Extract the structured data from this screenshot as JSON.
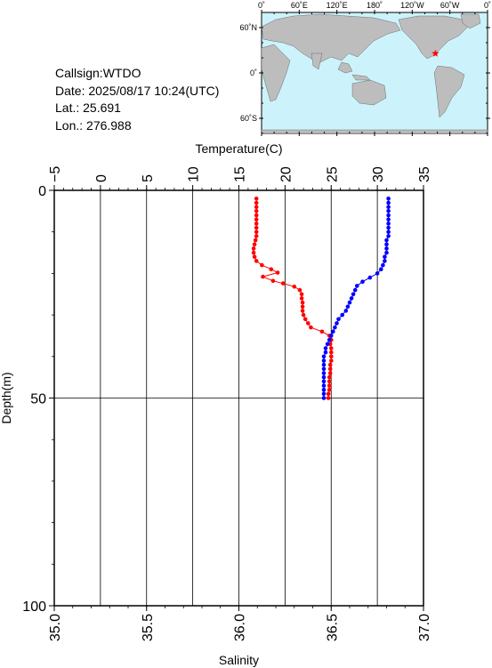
{
  "header": {
    "callsign": "Callsign:WTDO",
    "date": "Date:  2025/08/17 10:24(UTC)",
    "lat": "Lat.:   25.691",
    "lon": "Lon.:  276.988"
  },
  "map": {
    "lon_labels": [
      "0˚",
      "60˚E",
      "120˚E",
      "180˚",
      "120˚W",
      "60˚W",
      "0˚"
    ],
    "lat_labels": [
      "60˚N",
      "0˚",
      "60˚S"
    ],
    "station": {
      "lon": 276.988,
      "lat": 25.691
    },
    "colors": {
      "ocean": "#ccf3fb",
      "land": "#bdbdbd",
      "marker": "#ff0000"
    }
  },
  "chart_data": {
    "type": "line",
    "xlabel_top": "Temperature(C)",
    "xlabel_bottom": "Salinity",
    "ylabel": "Depth(m)",
    "temperature_ticks": [
      "−5",
      "0",
      "5",
      "10",
      "15",
      "20",
      "25",
      "30",
      "35"
    ],
    "temperature_range": [
      -5,
      35
    ],
    "salinity_ticks": [
      "35.0",
      "35.5",
      "36.0",
      "36.5",
      "37.0"
    ],
    "salinity_range": [
      35.0,
      37.0
    ],
    "depth_ticks": [
      "0",
      "50",
      "100"
    ],
    "depth_range": [
      0,
      100
    ],
    "grid": true,
    "series": [
      {
        "color": "#ff0000",
        "axis": "temperature",
        "points": [
          [
            16.9,
            2
          ],
          [
            16.9,
            3
          ],
          [
            16.9,
            4
          ],
          [
            16.9,
            5
          ],
          [
            16.9,
            6
          ],
          [
            16.9,
            7
          ],
          [
            16.9,
            8
          ],
          [
            16.9,
            9
          ],
          [
            16.9,
            10
          ],
          [
            16.9,
            11
          ],
          [
            16.8,
            12
          ],
          [
            16.7,
            13
          ],
          [
            16.6,
            14
          ],
          [
            16.6,
            15
          ],
          [
            16.7,
            16
          ],
          [
            16.9,
            17
          ],
          [
            17.5,
            18
          ],
          [
            18.5,
            19
          ],
          [
            19.2,
            19.8
          ],
          [
            17.6,
            20.8
          ],
          [
            18.7,
            21.8
          ],
          [
            19.8,
            22.4
          ],
          [
            21.0,
            23.2
          ],
          [
            21.6,
            24.0
          ],
          [
            21.8,
            25.0
          ],
          [
            21.8,
            26.0
          ],
          [
            21.9,
            27.0
          ],
          [
            21.9,
            28.0
          ],
          [
            21.9,
            29.0
          ],
          [
            22.0,
            30.0
          ],
          [
            22.2,
            31.0
          ],
          [
            22.5,
            32.0
          ],
          [
            22.8,
            33.0
          ],
          [
            24.0,
            34.0
          ],
          [
            24.8,
            35.0
          ],
          [
            25.0,
            36.0
          ],
          [
            24.9,
            37.0
          ],
          [
            25.0,
            38.0
          ],
          [
            25.0,
            39.0
          ],
          [
            25.0,
            40.0
          ],
          [
            25.0,
            41.0
          ],
          [
            24.9,
            42.0
          ],
          [
            24.9,
            43.0
          ],
          [
            24.9,
            44.0
          ],
          [
            24.8,
            45.0
          ],
          [
            24.8,
            46.0
          ],
          [
            24.8,
            47.0
          ],
          [
            24.8,
            48.0
          ],
          [
            24.7,
            49.0
          ],
          [
            24.7,
            50.0
          ]
        ]
      },
      {
        "color": "#0000ff",
        "axis": "salinity",
        "points": [
          [
            36.81,
            2
          ],
          [
            36.81,
            3
          ],
          [
            36.81,
            4
          ],
          [
            36.81,
            5
          ],
          [
            36.81,
            6
          ],
          [
            36.81,
            7
          ],
          [
            36.81,
            8
          ],
          [
            36.81,
            9
          ],
          [
            36.81,
            10
          ],
          [
            36.81,
            11
          ],
          [
            36.8,
            12
          ],
          [
            36.8,
            13
          ],
          [
            36.8,
            14
          ],
          [
            36.8,
            15
          ],
          [
            36.79,
            16
          ],
          [
            36.79,
            17
          ],
          [
            36.78,
            18
          ],
          [
            36.77,
            19
          ],
          [
            36.75,
            20
          ],
          [
            36.71,
            21
          ],
          [
            36.67,
            22
          ],
          [
            36.64,
            23
          ],
          [
            36.63,
            24
          ],
          [
            36.62,
            25
          ],
          [
            36.61,
            26
          ],
          [
            36.6,
            27
          ],
          [
            36.59,
            28
          ],
          [
            36.58,
            29
          ],
          [
            36.56,
            30
          ],
          [
            36.54,
            31
          ],
          [
            36.53,
            32
          ],
          [
            36.52,
            33
          ],
          [
            36.51,
            34
          ],
          [
            36.5,
            35
          ],
          [
            36.49,
            36
          ],
          [
            36.48,
            37
          ],
          [
            36.47,
            38
          ],
          [
            36.47,
            39
          ],
          [
            36.46,
            40
          ],
          [
            36.46,
            41
          ],
          [
            36.46,
            42
          ],
          [
            36.46,
            43
          ],
          [
            36.46,
            44
          ],
          [
            36.46,
            45
          ],
          [
            36.46,
            46
          ],
          [
            36.46,
            47
          ],
          [
            36.46,
            48
          ],
          [
            36.46,
            49
          ],
          [
            36.46,
            50
          ]
        ]
      }
    ]
  }
}
